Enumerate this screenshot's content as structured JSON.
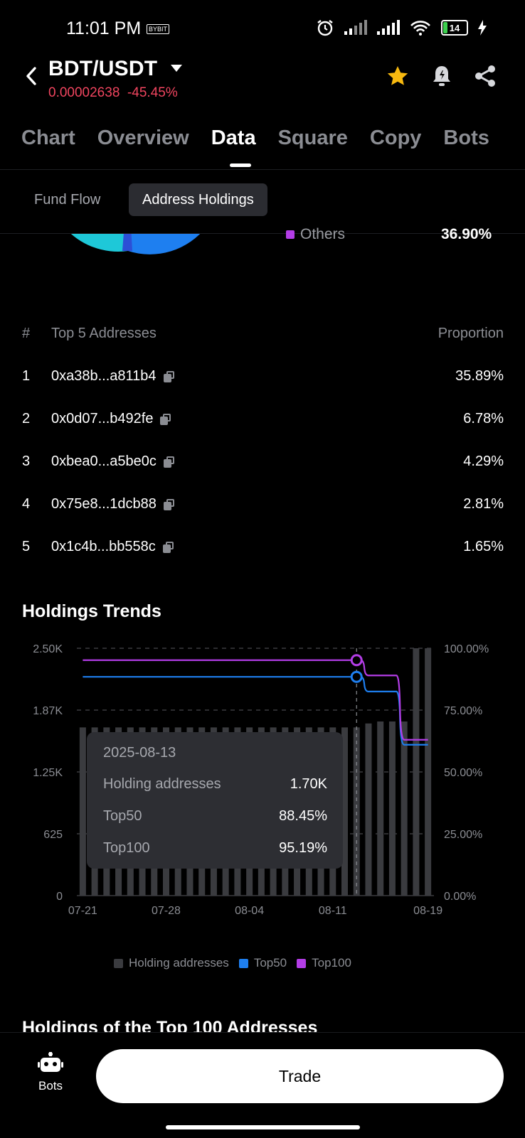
{
  "status_bar": {
    "time": "11:01 PM",
    "mini_app": "BYBIT",
    "battery": "14"
  },
  "header": {
    "pair": "BDT/USDT",
    "price": "0.00002638",
    "change": "-45.45%",
    "icons": [
      "back-arrow-icon",
      "caret-down-icon",
      "star-icon",
      "bell-alert-icon",
      "share-icon"
    ],
    "colors": {
      "down": "#f0455f",
      "star": "#f7b90f"
    }
  },
  "tabs": [
    "Chart",
    "Overview",
    "Data",
    "Square",
    "Copy",
    "Bots"
  ],
  "active_tab": "Data",
  "subtabs": {
    "fund_flow": "Fund Flow",
    "address_holdings": "Address Holdings"
  },
  "distribution": {
    "others_label": "Others",
    "others_pct": "36.90%"
  },
  "top_addresses": {
    "col_hash": "#",
    "col_address": "Top 5 Addresses",
    "col_proportion": "Proportion",
    "rows": [
      {
        "index": "1",
        "address": "0xa38b...a811b4",
        "proportion": "35.89%"
      },
      {
        "index": "2",
        "address": "0x0d07...b492fe",
        "proportion": "6.78%"
      },
      {
        "index": "3",
        "address": "0xbea0...a5be0c",
        "proportion": "4.29%"
      },
      {
        "index": "4",
        "address": "0x75e8...1dcb88",
        "proportion": "2.81%"
      },
      {
        "index": "5",
        "address": "0x1c4b...bb558c",
        "proportion": "1.65%"
      }
    ]
  },
  "holdings_trends": {
    "title": "Holdings Trends"
  },
  "chart_data": {
    "type": "bar+line",
    "title": "Holdings Trends",
    "x_ticks": [
      "07-21",
      "07-28",
      "08-04",
      "08-11",
      "08-19"
    ],
    "y_left_ticks": [
      "0",
      "625",
      "1.25K",
      "1.87K",
      "2.50K"
    ],
    "y_right_ticks": [
      "0.00%",
      "25.00%",
      "50.00%",
      "75.00%",
      "100.00%"
    ],
    "y_left_range": [
      0,
      2500
    ],
    "y_right_range": [
      0,
      100
    ],
    "dates": [
      "2025-07-21",
      "2025-07-22",
      "2025-07-23",
      "2025-07-24",
      "2025-07-25",
      "2025-07-26",
      "2025-07-27",
      "2025-07-28",
      "2025-07-29",
      "2025-07-30",
      "2025-07-31",
      "2025-08-01",
      "2025-08-02",
      "2025-08-03",
      "2025-08-04",
      "2025-08-05",
      "2025-08-06",
      "2025-08-07",
      "2025-08-08",
      "2025-08-09",
      "2025-08-10",
      "2025-08-11",
      "2025-08-12",
      "2025-08-13",
      "2025-08-14",
      "2025-08-15",
      "2025-08-16",
      "2025-08-17",
      "2025-08-18",
      "2025-08-19"
    ],
    "series": [
      {
        "name": "Holding addresses",
        "axis": "left",
        "kind": "bar",
        "color": "#3a3b3f",
        "values": [
          1700,
          1700,
          1700,
          1700,
          1700,
          1700,
          1700,
          1700,
          1700,
          1700,
          1700,
          1700,
          1700,
          1700,
          1700,
          1700,
          1700,
          1700,
          1700,
          1700,
          1700,
          1700,
          1700,
          1700,
          1740,
          1760,
          1760,
          1760,
          2500,
          2500
        ]
      },
      {
        "name": "Top50",
        "axis": "right",
        "kind": "line",
        "color": "#1e7ff0",
        "values": [
          88.45,
          88.45,
          88.45,
          88.45,
          88.45,
          88.45,
          88.45,
          88.45,
          88.45,
          88.45,
          88.45,
          88.45,
          88.45,
          88.45,
          88.45,
          88.45,
          88.45,
          88.45,
          88.45,
          88.45,
          88.45,
          88.45,
          88.45,
          88.45,
          82.5,
          82.5,
          82.5,
          61,
          61,
          61
        ]
      },
      {
        "name": "Top100",
        "axis": "right",
        "kind": "line",
        "color": "#b33de6",
        "values": [
          95.19,
          95.19,
          95.19,
          95.19,
          95.19,
          95.19,
          95.19,
          95.19,
          95.19,
          95.19,
          95.19,
          95.19,
          95.19,
          95.19,
          95.19,
          95.19,
          95.19,
          95.19,
          95.19,
          95.19,
          95.19,
          95.19,
          95.19,
          95.19,
          89,
          89,
          89,
          63,
          63,
          63
        ]
      }
    ],
    "highlight_index": 23,
    "legend": [
      "Holding addresses",
      "Top50",
      "Top100"
    ],
    "legend_position": "bottom"
  },
  "tooltip": {
    "date": "2025-08-13",
    "rows": [
      {
        "label": "Holding addresses",
        "value": "1.70K"
      },
      {
        "label": "Top50",
        "value": "88.45%"
      },
      {
        "label": "Top100",
        "value": "95.19%"
      }
    ]
  },
  "holdings_top100": {
    "title": "Holdings of the Top 100 Addresses"
  },
  "bottom": {
    "bots_label": "Bots",
    "trade_label": "Trade"
  }
}
